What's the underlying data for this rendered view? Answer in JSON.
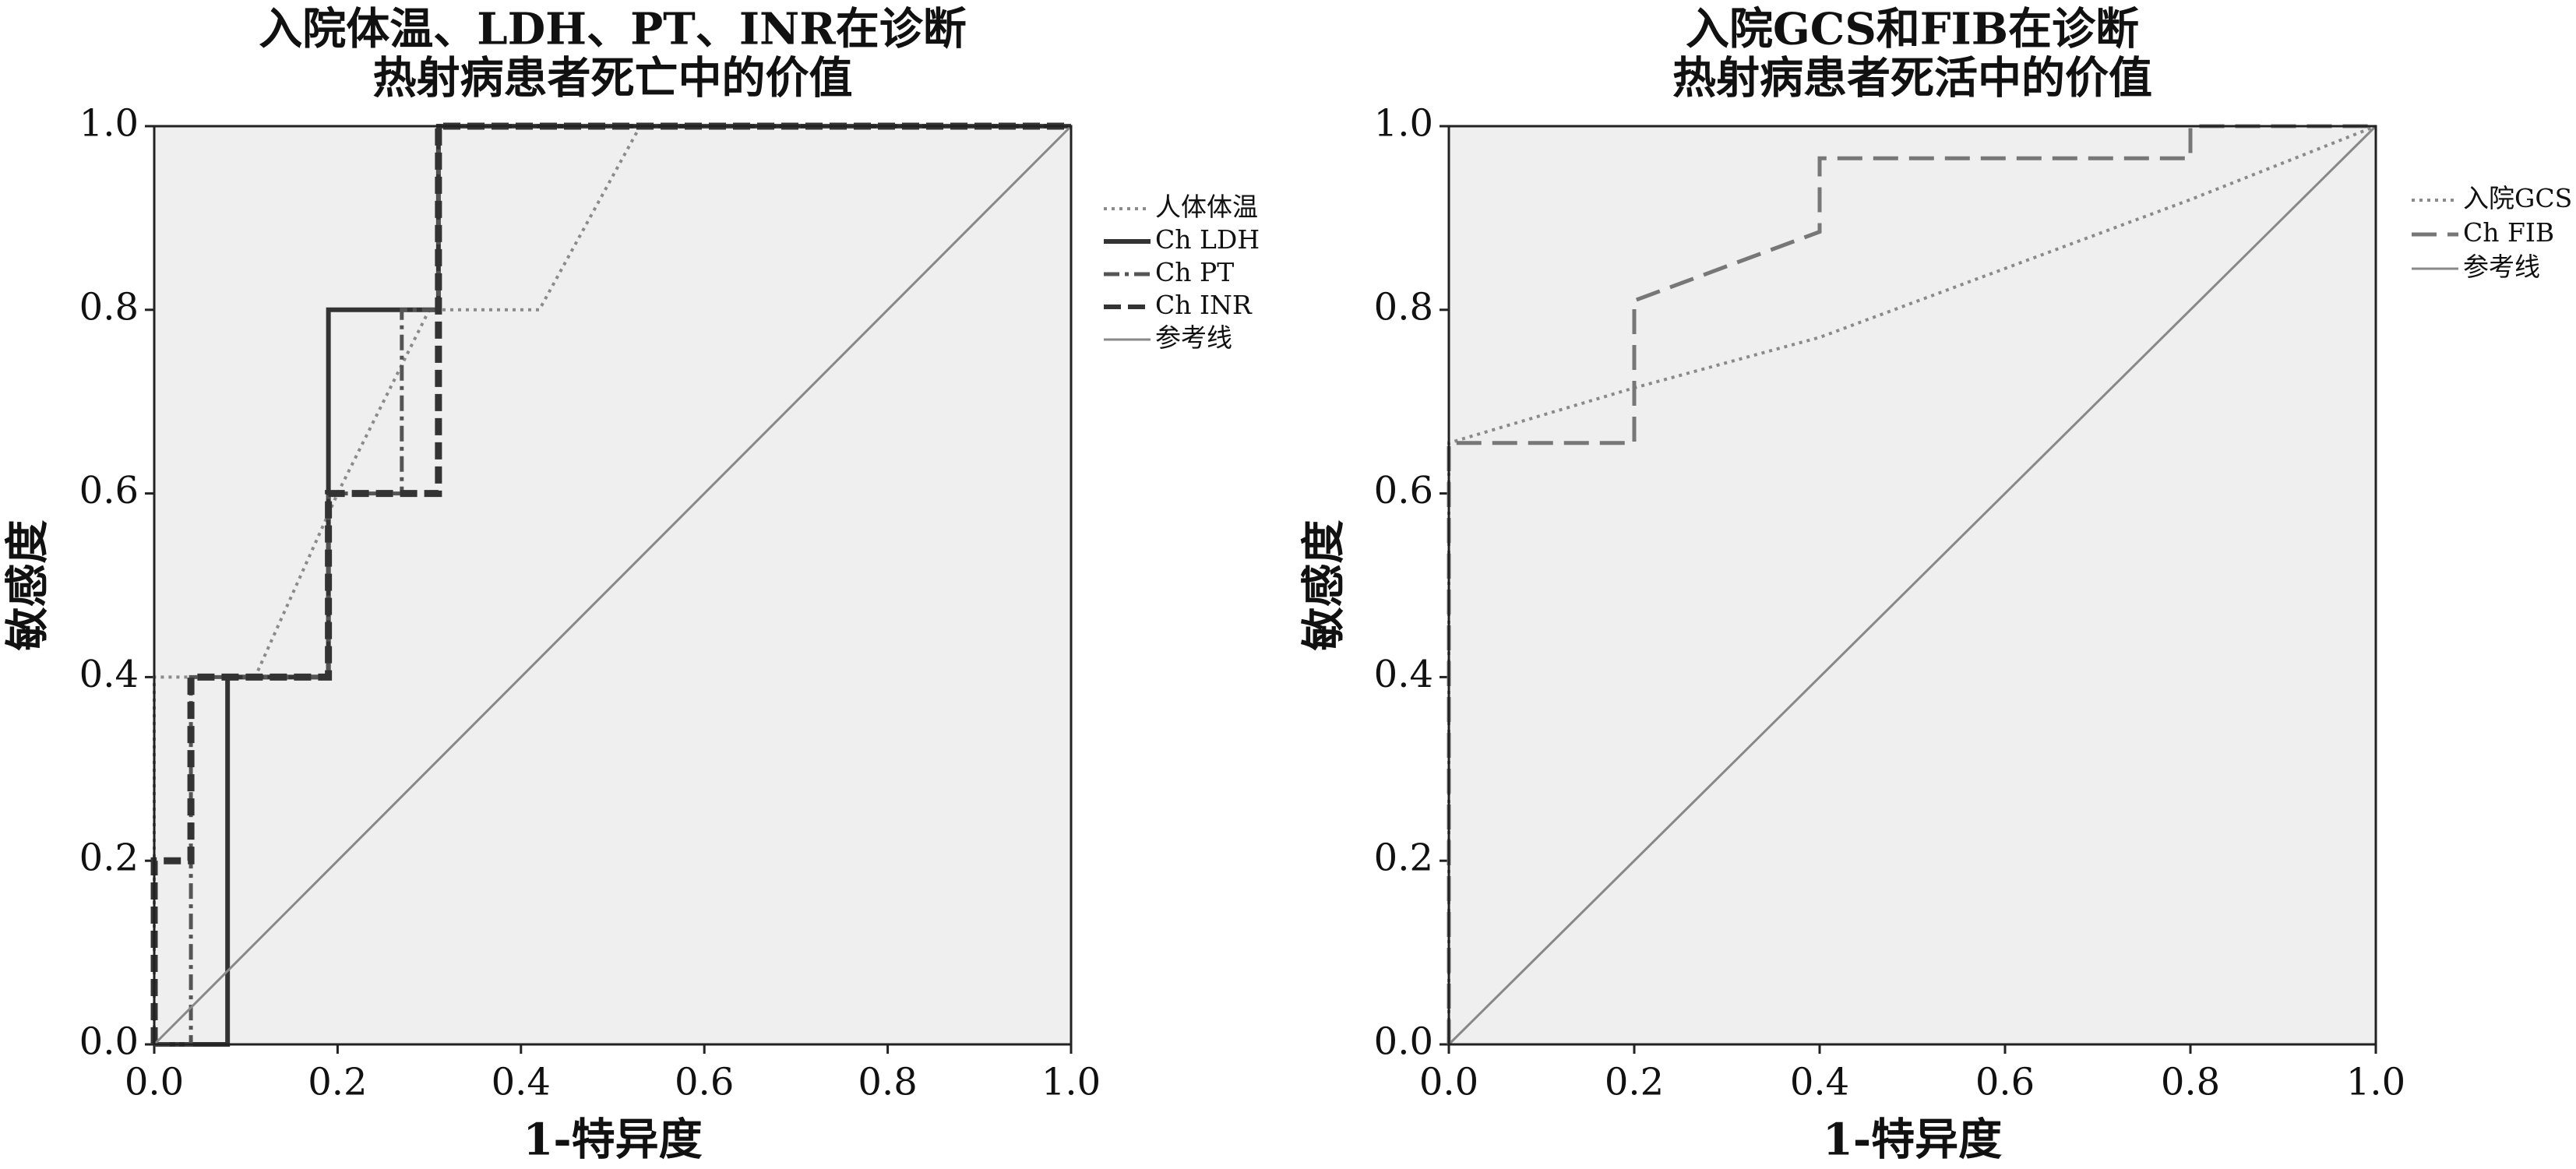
{
  "chart_data": [
    {
      "type": "line",
      "title": [
        "入院体温、LDH、PT、INR在诊断",
        "热射病患者死亡中的价值"
      ],
      "xlabel": "1-特异度",
      "ylabel": "敏感度",
      "xlim": [
        0,
        1
      ],
      "ylim": [
        0,
        1
      ],
      "xticks": [
        {
          "value": 0,
          "label": "0.0"
        },
        0.2,
        0.4,
        0.6,
        0.8,
        {
          "value": 1,
          "label": "1.0"
        }
      ],
      "yticks": [
        {
          "value": 0,
          "label": "0.0"
        },
        0.2,
        0.4,
        0.6,
        0.8,
        {
          "value": 1,
          "label": "1.0"
        }
      ],
      "legend": "right",
      "background": "#efefef",
      "series": [
        {
          "name": "人体体温",
          "color": "#8a8a8a",
          "style": "dotted",
          "x": [
            0,
            0,
            0.11,
            0.2,
            0.3,
            0.42,
            0.53,
            1
          ],
          "values": [
            0,
            0.4,
            0.4,
            0.6,
            0.8,
            0.8,
            1,
            1
          ]
        },
        {
          "name": "Ch LDH",
          "color": "#333333",
          "style": "solid",
          "x": [
            0,
            0.08,
            0.08,
            0.19,
            0.19,
            0.31,
            0.31,
            1
          ],
          "values": [
            0,
            0,
            0.4,
            0.4,
            0.8,
            0.8,
            1,
            1
          ]
        },
        {
          "name": "Ch PT",
          "color": "#555555",
          "style": "dashdot",
          "x": [
            0,
            0.04,
            0.04,
            0.19,
            0.19,
            0.27,
            0.27,
            0.31,
            0.31,
            1
          ],
          "values": [
            0,
            0,
            0.4,
            0.4,
            0.6,
            0.6,
            0.8,
            0.8,
            1,
            1
          ]
        },
        {
          "name": "Ch INR",
          "color": "#333333",
          "style": "bolddash",
          "x": [
            0,
            0,
            0.04,
            0.04,
            0.19,
            0.19,
            0.31,
            0.31,
            1
          ],
          "values": [
            0,
            0.2,
            0.2,
            0.4,
            0.4,
            0.6,
            0.6,
            1,
            1
          ]
        },
        {
          "name": "参考线",
          "color": "#888888",
          "style": "thin",
          "x": [
            0,
            1
          ],
          "values": [
            0,
            1
          ]
        }
      ]
    },
    {
      "type": "line",
      "title": [
        "入院GCS和FIB在诊断",
        "热射病患者死活中的价值"
      ],
      "xlabel": "1-特异度",
      "ylabel": "敏感度",
      "xlim": [
        0,
        1
      ],
      "ylim": [
        0,
        1
      ],
      "xticks": [
        {
          "value": 0,
          "label": "0.0"
        },
        0.2,
        0.4,
        0.6,
        0.8,
        {
          "value": 1,
          "label": "1.0"
        }
      ],
      "yticks": [
        {
          "value": 0,
          "label": "0.0"
        },
        0.2,
        0.4,
        0.6,
        0.8,
        {
          "value": 1,
          "label": "1.0"
        }
      ],
      "legend": "right",
      "background": "#efefef",
      "series": [
        {
          "name": "入院GCS",
          "color": "#8a8a8a",
          "style": "dotted",
          "x": [
            0,
            0,
            0.2,
            0.4,
            0.6,
            0.8,
            1
          ],
          "values": [
            0,
            0.655,
            0.715,
            0.77,
            0.845,
            0.92,
            1
          ]
        },
        {
          "name": "Ch FIB",
          "color": "#777777",
          "style": "dashed",
          "x": [
            0,
            0,
            0.2,
            0.2,
            0.4,
            0.4,
            0.8,
            0.8,
            1
          ],
          "values": [
            0,
            0.655,
            0.655,
            0.81,
            0.885,
            0.965,
            0.965,
            1,
            1
          ]
        },
        {
          "name": "参考线",
          "color": "#888888",
          "style": "thin",
          "x": [
            0,
            1
          ],
          "values": [
            0,
            1
          ]
        }
      ]
    }
  ]
}
